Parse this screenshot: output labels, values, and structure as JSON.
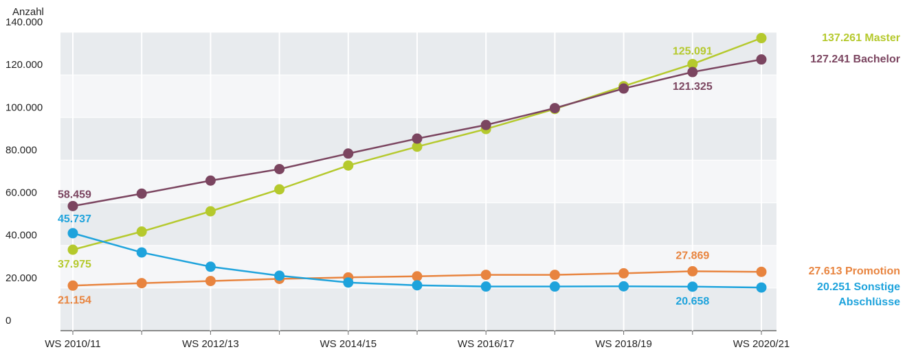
{
  "chart_data": {
    "type": "line",
    "y_label": "Anzahl",
    "categories": [
      "WS 2010/11",
      null,
      "WS 2012/13",
      null,
      "WS 2014/15",
      null,
      "WS 2016/17",
      null,
      "WS 2018/19",
      null,
      "WS 2020/21"
    ],
    "ylim": [
      0,
      140000
    ],
    "yticks": [
      0,
      {
        "value": 20000,
        "label": "20.000"
      },
      {
        "value": 40000,
        "label": "40.000"
      },
      {
        "value": 60000,
        "label": "60.000"
      },
      {
        "value": 80000,
        "label": "80.000"
      },
      {
        "value": 100000,
        "label": "100.000"
      },
      {
        "value": 120000,
        "label": "120.000"
      },
      {
        "value": 140000,
        "label": "140.000"
      }
    ],
    "grid": true,
    "series": [
      {
        "name": "Master",
        "color": "#b5c92d",
        "values": [
          37975,
          46500,
          56000,
          66300,
          77500,
          86300,
          94600,
          104000,
          114700,
          125091,
          137261
        ],
        "value_labels": [
          "37.975",
          null,
          null,
          null,
          null,
          null,
          null,
          null,
          null,
          "125.091",
          "137.261"
        ]
      },
      {
        "name": "Bachelor",
        "color": "#7b4560",
        "values": [
          58459,
          64300,
          70400,
          75800,
          83100,
          90100,
          96500,
          104400,
          113600,
          121325,
          127241
        ],
        "value_labels": [
          "58.459",
          null,
          null,
          null,
          null,
          null,
          null,
          null,
          null,
          "121.325",
          "127.241"
        ]
      },
      {
        "name": "Promotion",
        "color": "#e8843f",
        "values": [
          21154,
          22300,
          23300,
          24300,
          25000,
          25500,
          26200,
          26200,
          26900,
          27869,
          27613
        ],
        "value_labels": [
          "21.154",
          null,
          null,
          null,
          null,
          null,
          null,
          null,
          null,
          "27.869",
          "27.613"
        ]
      },
      {
        "name": "Sonstige Abschlüsse",
        "color": "#1ea3dc",
        "values": [
          45737,
          36700,
          30000,
          25800,
          22600,
          21300,
          20700,
          20700,
          20800,
          20658,
          20251
        ],
        "value_labels": [
          "45.737",
          null,
          null,
          null,
          null,
          null,
          null,
          null,
          null,
          "20.658",
          "20.251"
        ]
      }
    ]
  }
}
